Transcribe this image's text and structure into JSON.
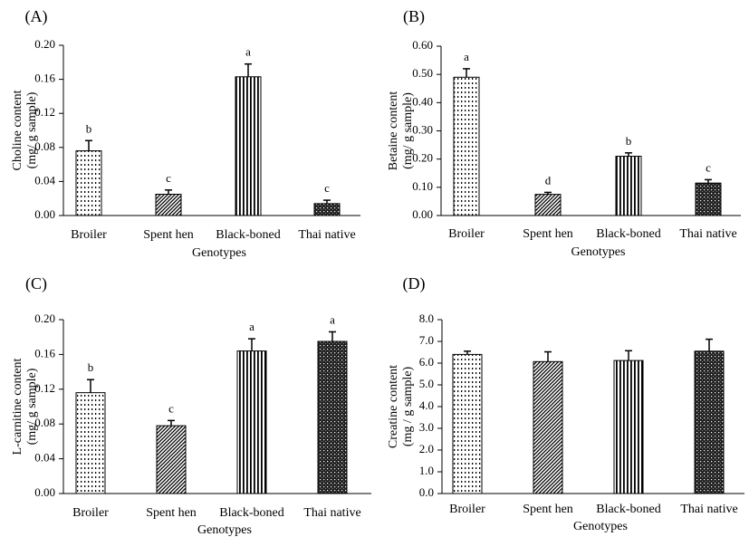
{
  "chart_data": [
    {
      "panel_label": "(A)",
      "type": "bar",
      "categories": [
        "Broiler",
        "Spent hen",
        "Black-boned",
        "Thai native"
      ],
      "values": [
        0.076,
        0.025,
        0.163,
        0.014
      ],
      "errors": [
        0.012,
        0.005,
        0.015,
        0.004
      ],
      "significance": [
        "b",
        "c",
        "a",
        "c"
      ],
      "patterns": [
        "dots",
        "diag",
        "vert",
        "cross"
      ],
      "ylim": [
        0,
        0.2
      ],
      "yticks": [
        "0.00",
        "0.04",
        "0.08",
        "0.12",
        "0.16",
        "0.20"
      ],
      "ylabel_line1": "Choline content",
      "ylabel_line2": "(mg/ g sample)",
      "xlabel": "Genotypes"
    },
    {
      "panel_label": "(B)",
      "type": "bar",
      "categories": [
        "Broiler",
        "Spent hen",
        "Black-boned",
        "Thai native"
      ],
      "values": [
        0.49,
        0.075,
        0.21,
        0.115
      ],
      "errors": [
        0.03,
        0.007,
        0.012,
        0.012
      ],
      "significance": [
        "a",
        "d",
        "b",
        "c"
      ],
      "patterns": [
        "dots",
        "diag",
        "vert",
        "cross"
      ],
      "ylim": [
        0,
        0.6
      ],
      "yticks": [
        "0.00",
        "0.10",
        "0.20",
        "0.30",
        "0.40",
        "0.50",
        "0.60"
      ],
      "ylabel_line1": "Betaine content",
      "ylabel_line2": "(mg/ g sample)",
      "xlabel": "Genotypes"
    },
    {
      "panel_label": "(C)",
      "type": "bar",
      "categories": [
        "Broiler",
        "Spent hen",
        "Black-boned",
        "Thai native"
      ],
      "values": [
        0.116,
        0.078,
        0.164,
        0.175
      ],
      "errors": [
        0.015,
        0.006,
        0.014,
        0.011
      ],
      "significance": [
        "b",
        "c",
        "a",
        "a"
      ],
      "patterns": [
        "dots",
        "diag",
        "vert",
        "cross"
      ],
      "ylim": [
        0,
        0.2
      ],
      "yticks": [
        "0.00",
        "0.04",
        "0.08",
        "0.12",
        "0.16",
        "0.20"
      ],
      "ylabel_line1": "L-carnitine content",
      "ylabel_line2": "(mg/ g sample)",
      "xlabel": "Genotypes"
    },
    {
      "panel_label": "(D)",
      "type": "bar",
      "categories": [
        "Broiler",
        "Spent hen",
        "Black-boned",
        "Thai native"
      ],
      "values": [
        6.4,
        6.07,
        6.12,
        6.55
      ],
      "errors": [
        0.15,
        0.45,
        0.45,
        0.55
      ],
      "significance": [
        "",
        "",
        "",
        ""
      ],
      "patterns": [
        "dots",
        "diag",
        "vert",
        "cross"
      ],
      "ylim": [
        0,
        8
      ],
      "yticks": [
        "0.0",
        "1.0",
        "2.0",
        "3.0",
        "4.0",
        "5.0",
        "6.0",
        "7.0",
        "8.0"
      ],
      "ylabel_line1": "Creatine content",
      "ylabel_line2": "(mg / g sample)",
      "xlabel": "Genotypes"
    }
  ]
}
